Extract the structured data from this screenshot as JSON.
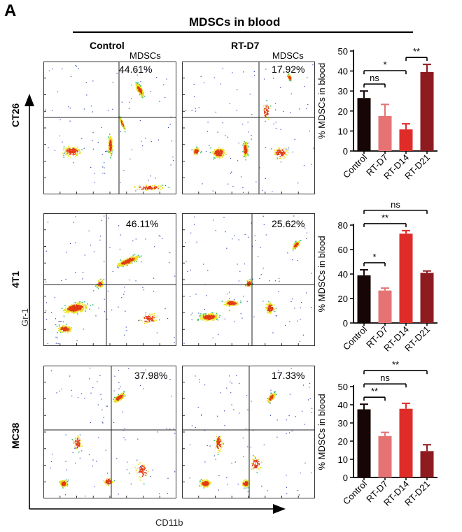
{
  "figure": {
    "panel_label": "A",
    "title": "MDSCs in blood",
    "column_labels": [
      "Control",
      "RT-D7"
    ],
    "row_labels": [
      "CT26",
      "4T1",
      "MC38"
    ],
    "y_axis_label": "Gr-1",
    "x_axis_label": "CD11b"
  },
  "flow_plots": [
    {
      "row": "CT26",
      "group": "Control",
      "gate_name": "MDSCs",
      "percent": "44.61%"
    },
    {
      "row": "CT26",
      "group": "RT-D7",
      "gate_name": "MDSCs",
      "percent": "17.92%"
    },
    {
      "row": "4T1",
      "group": "Control",
      "gate_name": "",
      "percent": "46.11%"
    },
    {
      "row": "4T1",
      "group": "RT-D7",
      "gate_name": "",
      "percent": "25.62%"
    },
    {
      "row": "MC38",
      "group": "Control",
      "gate_name": "",
      "percent": "37.98%"
    },
    {
      "row": "MC38",
      "group": "RT-D7",
      "gate_name": "",
      "percent": "17.33%"
    }
  ],
  "colors": {
    "Control": "#160606",
    "RT-D7": "#e57373",
    "RT-D14": "#df2c28",
    "RT-D21": "#8e1b1f",
    "density_low": "#2b44b8",
    "density_mid": "#39c07a",
    "density_high": "#e8e024",
    "density_peak": "#e23a12"
  },
  "chart_data": [
    {
      "type": "bar",
      "model": "CT26",
      "categories": [
        "Control",
        "RT-D7",
        "RT-D14",
        "RT-D21"
      ],
      "values": [
        26.5,
        17.5,
        10.8,
        39.5
      ],
      "errors": [
        3.5,
        5.8,
        2.8,
        3.8
      ],
      "ylabel": "% MDSCs in blood",
      "ylim": [
        0,
        50
      ],
      "yticks": [
        0,
        10,
        20,
        30,
        40,
        50
      ],
      "significance": [
        {
          "from": "Control",
          "to": "RT-D7",
          "label": "ns"
        },
        {
          "from": "Control",
          "to": "RT-D14",
          "label": "*"
        },
        {
          "from": "RT-D14",
          "to": "RT-D21",
          "label": "**"
        }
      ]
    },
    {
      "type": "bar",
      "model": "4T1",
      "categories": [
        "Control",
        "RT-D7",
        "RT-D14",
        "RT-D21"
      ],
      "values": [
        39,
        26.5,
        73,
        41
      ],
      "errors": [
        4.5,
        2,
        2.5,
        1.5
      ],
      "ylabel": "% MDSCs in blood",
      "ylim": [
        0,
        80
      ],
      "yticks": [
        0,
        20,
        40,
        60,
        80
      ],
      "significance": [
        {
          "from": "Control",
          "to": "RT-D7",
          "label": "*"
        },
        {
          "from": "Control",
          "to": "RT-D14",
          "label": "**"
        },
        {
          "from": "Control",
          "to": "RT-D21",
          "label": "ns"
        }
      ]
    },
    {
      "type": "bar",
      "model": "MC38",
      "categories": [
        "Control",
        "RT-D7",
        "RT-D14",
        "RT-D21"
      ],
      "values": [
        37.5,
        22.8,
        37.8,
        14.5
      ],
      "errors": [
        2.8,
        2,
        3,
        3.5
      ],
      "ylabel": "% MDSCs in blood",
      "ylim": [
        0,
        50
      ],
      "yticks": [
        0,
        10,
        20,
        30,
        40,
        50
      ],
      "significance": [
        {
          "from": "Control",
          "to": "RT-D7",
          "label": "**"
        },
        {
          "from": "Control",
          "to": "RT-D14",
          "label": "ns"
        },
        {
          "from": "Control",
          "to": "RT-D21",
          "label": "**"
        }
      ]
    }
  ]
}
